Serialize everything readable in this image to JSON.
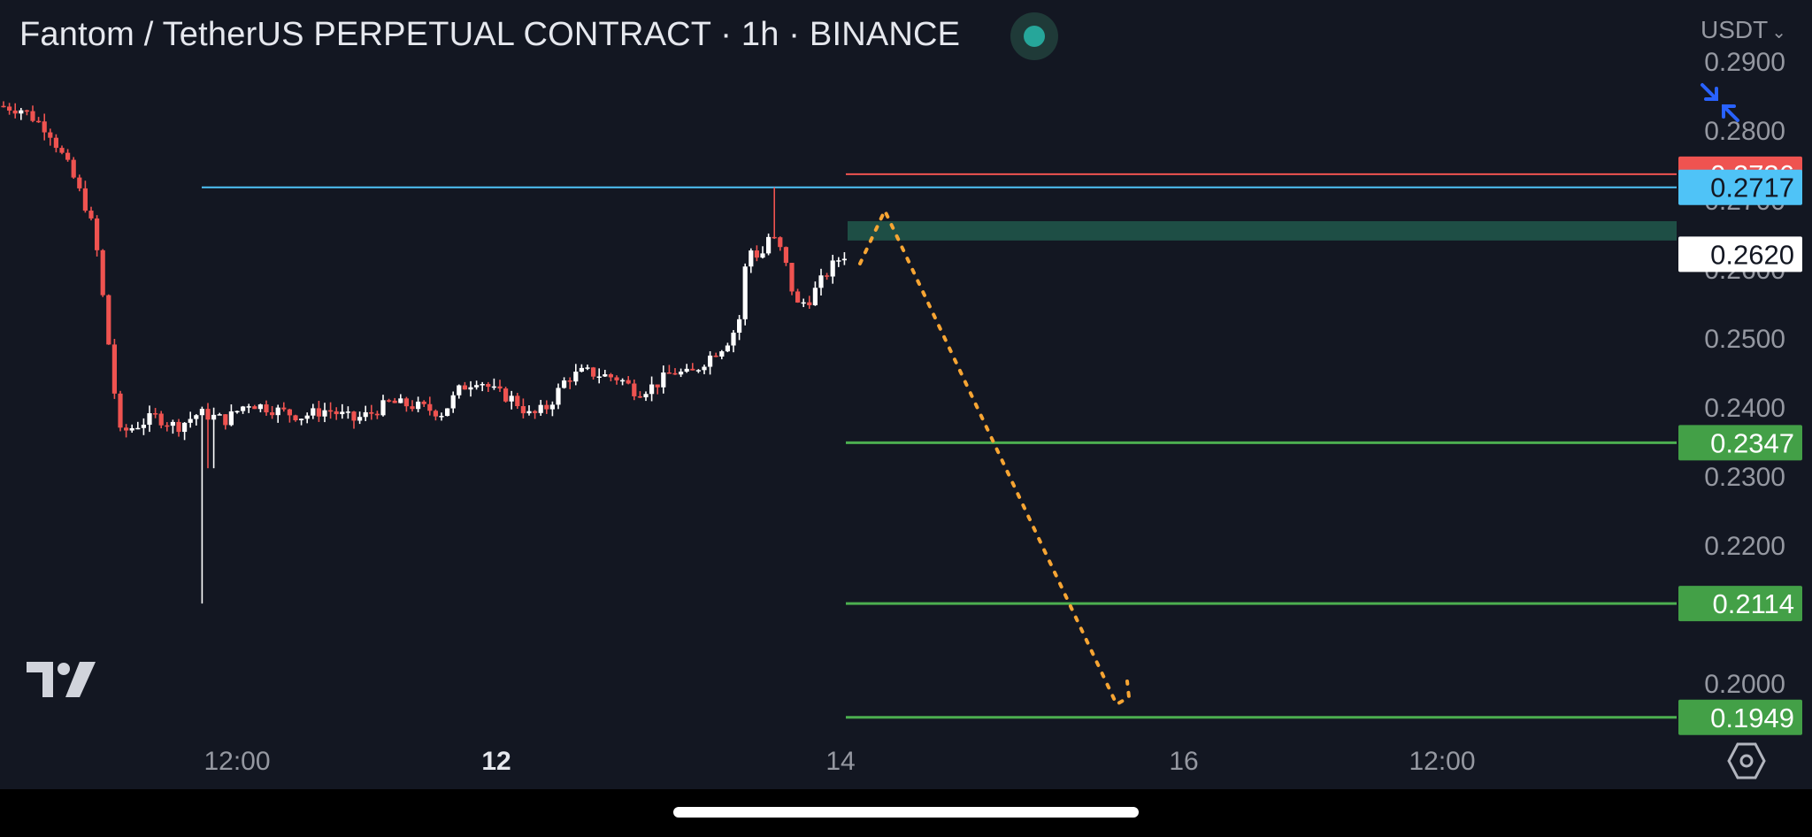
{
  "header": {
    "title": "Fantom / TetherUS PERPETUAL CONTRACT · 1h · BINANCE",
    "currency": "USDT"
  },
  "colors": {
    "background": "#131722",
    "bull": "#ffffff",
    "bear": "#ef5350",
    "support_line": "#4caf50",
    "resistance_line": "#ef5350",
    "cyan_line": "#4fc3f7",
    "zone": "#1e4e45",
    "projection": "#f7a533"
  },
  "chart_data": {
    "type": "candlestick",
    "symbol": "FTMUSDT.P",
    "interval": "1h",
    "exchange": "BINANCE",
    "y_ticks": [
      "0.2900",
      "0.2800",
      "0.2700",
      "0.2600",
      "0.2500",
      "0.2400",
      "0.2300",
      "0.2200",
      "0.2000"
    ],
    "x_ticks": [
      {
        "label": "12:00",
        "bold": false
      },
      {
        "label": "12",
        "bold": true
      },
      {
        "label": "14",
        "bold": false
      },
      {
        "label": "16",
        "bold": false
      },
      {
        "label": "12:00",
        "bold": false
      }
    ],
    "price_labels": [
      {
        "value": "0.2736",
        "type": "resistance"
      },
      {
        "value": "0.2717",
        "type": "reference"
      },
      {
        "value": "0.2620",
        "type": "last"
      },
      {
        "value": "0.2347",
        "type": "target"
      },
      {
        "value": "0.2114",
        "type": "target"
      },
      {
        "value": "0.1949",
        "type": "target"
      }
    ],
    "zone": {
      "from": 0.264,
      "to": 0.2668
    },
    "projection_path": [
      {
        "t": 4.3,
        "price": 0.2645
      },
      {
        "t": 4.7,
        "price": 0.2668
      },
      {
        "t": 14.2,
        "price": 0.2
      },
      {
        "t": 14.6,
        "price": 0.2
      },
      {
        "t": 14.8,
        "price": 0.2005
      }
    ]
  }
}
